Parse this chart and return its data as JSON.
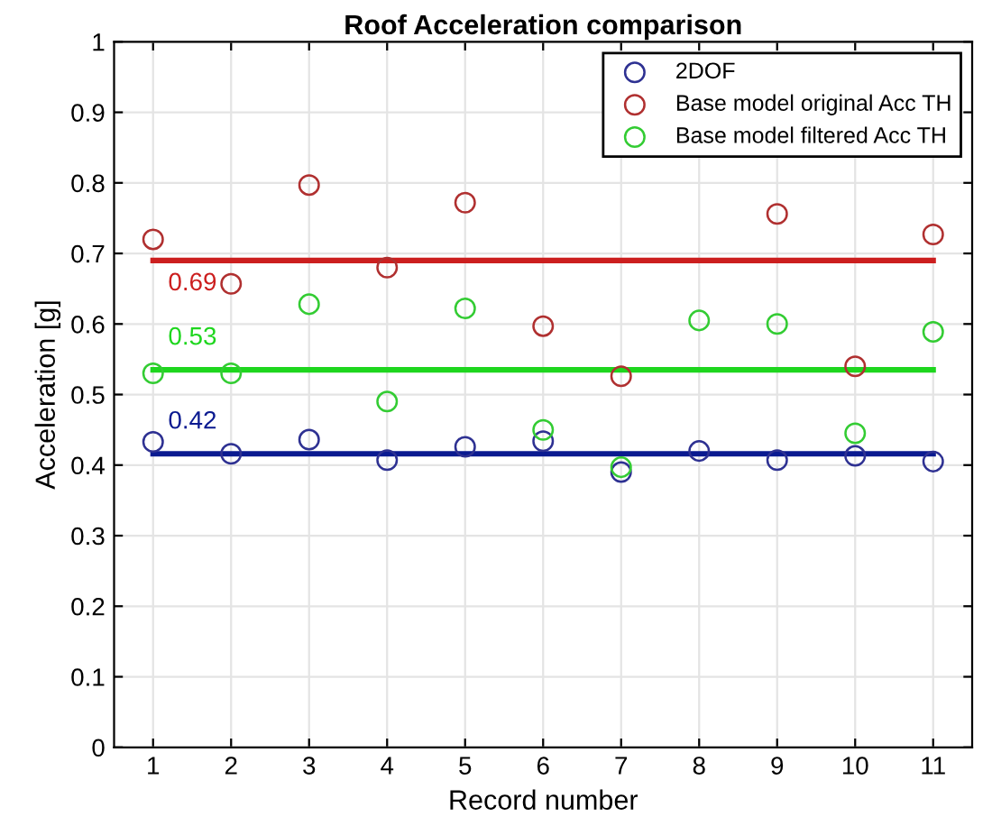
{
  "chart_data": {
    "type": "scatter",
    "title": "Roof Acceleration comparison",
    "xlabel": "Record number",
    "ylabel": "Acceleration [g]",
    "xlim": [
      0.5,
      11.5
    ],
    "xticks": [
      1,
      2,
      3,
      4,
      5,
      6,
      7,
      8,
      9,
      10,
      11
    ],
    "ylim": [
      0,
      1
    ],
    "yticks": [
      0,
      0.1,
      0.2,
      0.3,
      0.4,
      0.5,
      0.6,
      0.7,
      0.8,
      0.9,
      1
    ],
    "grid": true,
    "legend": "top right",
    "marker": "circle",
    "series": [
      {
        "name": "2DOF",
        "color": "#2e3192",
        "x": [
          1,
          2,
          3,
          4,
          5,
          6,
          7,
          8,
          9,
          10,
          11
        ],
        "values": [
          0.433,
          0.416,
          0.436,
          0.407,
          0.426,
          0.434,
          0.39,
          0.42,
          0.407,
          0.413,
          0.405
        ]
      },
      {
        "name": "Base model original Acc TH",
        "color": "#b03030",
        "x": [
          1,
          2,
          3,
          4,
          5,
          6,
          7,
          8,
          9,
          10,
          11
        ],
        "values": [
          0.72,
          0.657,
          0.797,
          0.68,
          0.772,
          0.597,
          0.526,
          null,
          0.756,
          0.54,
          0.727
        ]
      },
      {
        "name": "Base model filtered Acc TH",
        "color": "#33cc33",
        "x": [
          1,
          2,
          3,
          4,
          5,
          6,
          7,
          8,
          9,
          10,
          11
        ],
        "values": [
          0.53,
          0.53,
          0.628,
          0.49,
          0.622,
          0.45,
          0.397,
          0.605,
          0.6,
          0.445,
          0.589
        ]
      },
      {
        "type": "line",
        "marker": "none",
        "color": "#0a1a90",
        "x": [
          1,
          11
        ],
        "values": [
          0.416,
          0.416
        ]
      },
      {
        "type": "line",
        "marker": "none",
        "color": "#cc1f1f",
        "x": [
          1,
          11
        ],
        "values": [
          0.69,
          0.69
        ]
      },
      {
        "type": "line",
        "marker": "none",
        "color": "#1ed61e",
        "x": [
          1,
          11
        ],
        "values": [
          0.535,
          0.535
        ]
      }
    ],
    "annotations": [
      {
        "text": "0.42",
        "y": 0.416
      },
      {
        "text": "0.69",
        "y": 0.69
      },
      {
        "text": "0.53",
        "y": 0.535
      }
    ]
  }
}
